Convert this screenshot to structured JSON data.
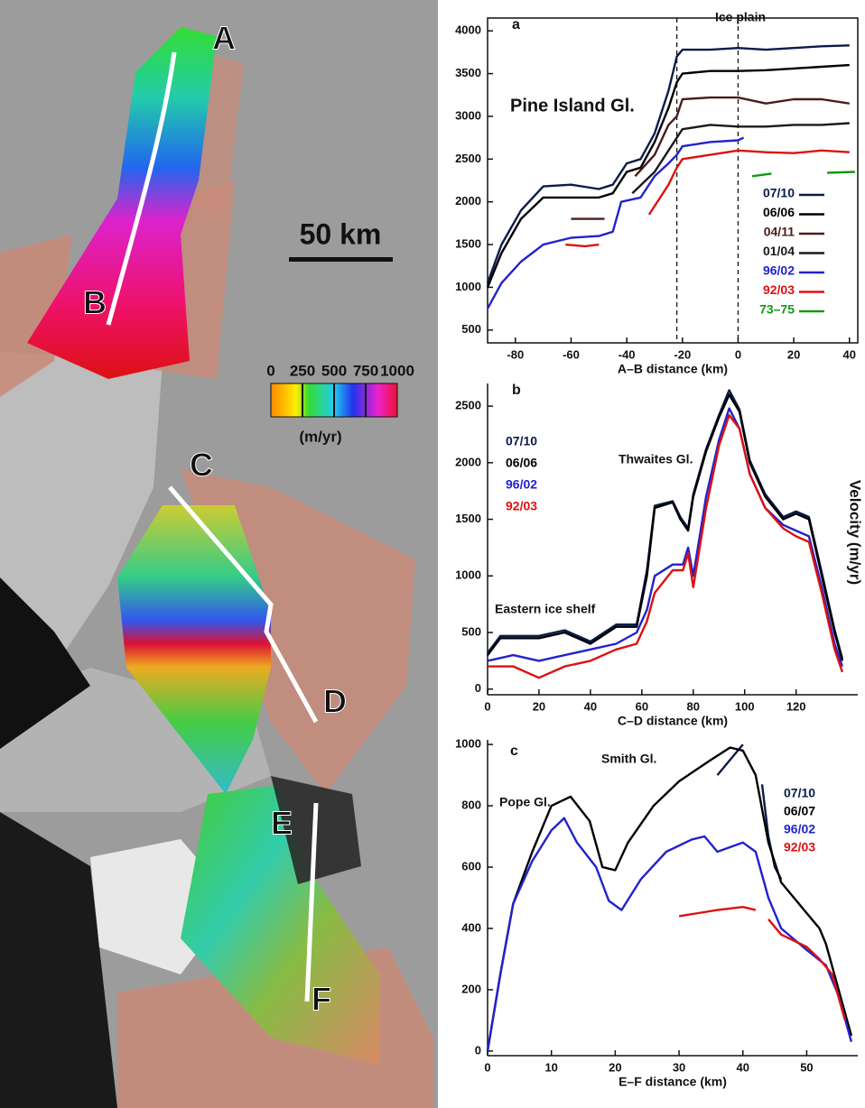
{
  "map": {
    "labels": [
      "A",
      "B",
      "C",
      "D",
      "E",
      "F"
    ],
    "scale_bar": "50 km",
    "colorbar": {
      "lim": [
        0,
        1000
      ],
      "ticks": [
        0,
        250,
        500,
        750,
        1000
      ],
      "unit": "(m/yr)"
    }
  },
  "chart_data": [
    {
      "type": "line",
      "panel_label": "a",
      "annotations": [
        "Ice plain",
        "Pine Island Gl."
      ],
      "xlabel": "A–B distance (km)",
      "xlim": [
        -90,
        43
      ],
      "xticks": [
        -80,
        -60,
        -40,
        -20,
        0,
        20,
        40
      ],
      "ylim": [
        350,
        4150
      ],
      "yticks": [
        500,
        1000,
        1500,
        2000,
        2500,
        3000,
        3500,
        4000
      ],
      "vlines": [
        -22,
        0
      ],
      "legend": "right",
      "legend_marker": "line",
      "box": true,
      "series": [
        {
          "name": "07/10",
          "color": "#0b1c4a",
          "x": [
            -90,
            -85,
            -78,
            -70,
            -60,
            -50,
            -45,
            -40,
            -35,
            -30,
            -25,
            -22,
            -20,
            -10,
            0,
            10,
            20,
            30,
            40
          ],
          "values": [
            1050,
            1500,
            1900,
            2180,
            2200,
            2150,
            2200,
            2450,
            2500,
            2800,
            3300,
            3700,
            3780,
            3780,
            3800,
            3780,
            3800,
            3820,
            3830
          ]
        },
        {
          "name": "06/06",
          "color": "#000000",
          "x": [
            -90,
            -85,
            -78,
            -70,
            -60,
            -50,
            -45,
            -40,
            -35,
            -30,
            -25,
            -22,
            -20,
            -10,
            0,
            10,
            20,
            30,
            40
          ],
          "values": [
            1000,
            1400,
            1800,
            2050,
            2050,
            2050,
            2100,
            2350,
            2400,
            2700,
            3100,
            3400,
            3500,
            3530,
            3530,
            3540,
            3560,
            3580,
            3600
          ]
        },
        {
          "name": "04/11",
          "color": "#4a1c1c",
          "x": [
            -60,
            -48,
            -45,
            -37,
            -30,
            -25,
            -22,
            -20,
            -10,
            0,
            10,
            20,
            30,
            40
          ],
          "values": [
            1800,
            1800,
            null,
            2300,
            2550,
            2900,
            3000,
            3200,
            3220,
            3220,
            3150,
            3200,
            3200,
            3150
          ]
        },
        {
          "name": "01/04",
          "color": "#1a1a1a",
          "x": [
            -38,
            -30,
            -25,
            -22,
            -20,
            -10,
            0,
            10,
            20,
            30,
            40
          ],
          "values": [
            2100,
            2350,
            2600,
            2750,
            2850,
            2900,
            2880,
            2880,
            2900,
            2900,
            2920
          ]
        },
        {
          "name": "96/02",
          "color": "#2222cc",
          "x": [
            -90,
            -85,
            -78,
            -70,
            -60,
            -50,
            -45,
            -42,
            -35,
            -30,
            -25,
            -22,
            -20,
            -10,
            0,
            2
          ],
          "values": [
            750,
            1050,
            1300,
            1500,
            1580,
            1600,
            1650,
            2000,
            2050,
            2300,
            2450,
            2550,
            2650,
            2700,
            2720,
            2750
          ]
        },
        {
          "name": "92/03",
          "color": "#dd1111",
          "x": [
            -62,
            -55,
            -50,
            -40,
            -32,
            -25,
            -22,
            -20,
            -10,
            0,
            10,
            20,
            30,
            40
          ],
          "values": [
            1500,
            1480,
            1500,
            null,
            1850,
            2200,
            2400,
            2500,
            2550,
            2600,
            2580,
            2570,
            2600,
            2580
          ]
        },
        {
          "name": "73–75",
          "color": "#119911",
          "x": [
            5,
            12,
            15,
            32,
            42
          ],
          "values": [
            2300,
            2330,
            null,
            2340,
            2350
          ]
        }
      ]
    },
    {
      "type": "line",
      "panel_label": "b",
      "annotations": [
        "Thwaites Gl.",
        "Eastern ice shelf"
      ],
      "xlabel": "C–D distance (km)",
      "ylabel": "Velocity (m/yr)",
      "xlim": [
        0,
        144
      ],
      "xticks": [
        0,
        20,
        40,
        60,
        80,
        100,
        120
      ],
      "ylim": [
        -50,
        2700
      ],
      "yticks": [
        0,
        500,
        1000,
        1500,
        2000,
        2500
      ],
      "legend": "upper left",
      "legend_marker": "none",
      "box": false,
      "series": [
        {
          "name": "07/10",
          "color": "#0b1c4a",
          "x": [
            0,
            5,
            20,
            30,
            40,
            50,
            58,
            62,
            65,
            72,
            75,
            78,
            80,
            85,
            90,
            94,
            98,
            102,
            108,
            115,
            120,
            125,
            130,
            135,
            138
          ],
          "values": [
            320,
            470,
            470,
            520,
            420,
            570,
            570,
            1050,
            1620,
            1660,
            1520,
            1420,
            1720,
            2120,
            2420,
            2640,
            2470,
            2020,
            1720,
            1520,
            1570,
            1520,
            1030,
            520,
            270
          ]
        },
        {
          "name": "06/06",
          "color": "#000000",
          "x": [
            0,
            5,
            20,
            30,
            40,
            50,
            58,
            62,
            65,
            72,
            75,
            78,
            80,
            85,
            90,
            94,
            98,
            102,
            108,
            115,
            120,
            125,
            130,
            135,
            138
          ],
          "values": [
            300,
            450,
            450,
            500,
            400,
            550,
            550,
            1000,
            1600,
            1650,
            1500,
            1400,
            1700,
            2100,
            2400,
            2600,
            2450,
            2000,
            1700,
            1500,
            1550,
            1500,
            1000,
            500,
            250
          ]
        },
        {
          "name": "96/02",
          "color": "#2222cc",
          "x": [
            0,
            10,
            20,
            30,
            40,
            50,
            58,
            62,
            65,
            72,
            76,
            78,
            80,
            85,
            90,
            94,
            98,
            102,
            108,
            115,
            120,
            125,
            130,
            135,
            138
          ],
          "values": [
            250,
            300,
            250,
            300,
            350,
            400,
            500,
            700,
            1000,
            1100,
            1100,
            1250,
            1000,
            1700,
            2200,
            2480,
            2300,
            1900,
            1600,
            1450,
            1400,
            1350,
            900,
            400,
            200
          ]
        },
        {
          "name": "92/03",
          "color": "#dd1111",
          "x": [
            0,
            10,
            20,
            30,
            40,
            50,
            58,
            62,
            65,
            72,
            76,
            78,
            80,
            85,
            90,
            94,
            98,
            102,
            108,
            115,
            120,
            125,
            130,
            135,
            138
          ],
          "values": [
            200,
            200,
            100,
            200,
            250,
            350,
            400,
            600,
            850,
            1050,
            1050,
            1200,
            900,
            1600,
            2150,
            2420,
            2300,
            1900,
            1600,
            1420,
            1350,
            1300,
            850,
            350,
            150
          ]
        }
      ]
    },
    {
      "type": "line",
      "panel_label": "c",
      "annotations": [
        "Smith Gl.",
        "Pope Gl."
      ],
      "xlabel": "E–F distance (km)",
      "xlim": [
        0,
        58
      ],
      "xticks": [
        0,
        10,
        20,
        30,
        40,
        50
      ],
      "ylim": [
        -15,
        1015
      ],
      "yticks": [
        0,
        200,
        400,
        600,
        800,
        1000
      ],
      "legend": "upper right",
      "legend_marker": "none",
      "box": false,
      "series": [
        {
          "name": "07/10",
          "color": "#0b1c4a",
          "x": [
            36,
            38,
            40,
            41,
            43,
            44,
            45,
            46
          ],
          "values": [
            900,
            950,
            1000,
            null,
            870,
            700,
            600,
            560
          ]
        },
        {
          "name": "06/07",
          "color": "#000000",
          "x": [
            0,
            2,
            4,
            7,
            10,
            13,
            16,
            18,
            20,
            22,
            26,
            30,
            35,
            38,
            40,
            42,
            44,
            46,
            48,
            50,
            52,
            53,
            55,
            57
          ],
          "values": [
            0,
            250,
            480,
            650,
            800,
            830,
            750,
            600,
            590,
            680,
            800,
            880,
            950,
            990,
            980,
            900,
            680,
            550,
            500,
            450,
            400,
            350,
            200,
            50
          ]
        },
        {
          "name": "96/02",
          "color": "#2222cc",
          "x": [
            0,
            2,
            4,
            7,
            10,
            12,
            14,
            17,
            19,
            21,
            24,
            28,
            32,
            34,
            36,
            40,
            42,
            44,
            46,
            50,
            53,
            55,
            57
          ],
          "values": [
            0,
            250,
            480,
            620,
            720,
            760,
            680,
            600,
            490,
            460,
            560,
            650,
            690,
            700,
            650,
            680,
            650,
            500,
            400,
            330,
            280,
            180,
            30
          ]
        },
        {
          "name": "92/03",
          "color": "#dd1111",
          "x": [
            30,
            33,
            36,
            40,
            42,
            43,
            44,
            46,
            50,
            52,
            54,
            56
          ],
          "values": [
            440,
            450,
            460,
            470,
            460,
            null,
            430,
            380,
            340,
            300,
            250,
            100
          ]
        }
      ]
    }
  ]
}
